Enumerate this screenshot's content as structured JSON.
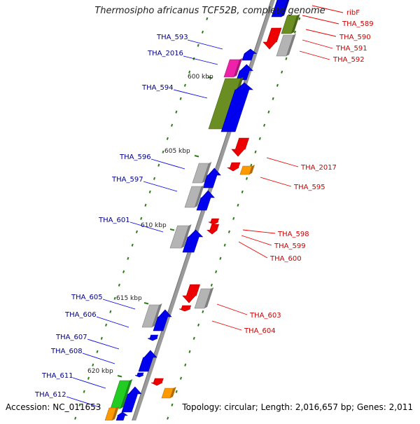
{
  "title": "Thermosipho africanus TCF52B, complete genome",
  "footer": {
    "accession": "Accession: NC_011653",
    "summary": "Topology: circular; Length: 2,016,657 bp; Genes: 2,011"
  },
  "colors": {
    "backbone": "#8a8a8a",
    "label_left": "#00008b",
    "label_right": "#cc0000",
    "tick": "#2e7d1a",
    "blue": "#0000ee",
    "grey": "#b4b4b4",
    "olive": "#6b8e23",
    "green": "#22cc22",
    "magenta": "#ee22aa",
    "red": "#ee0000",
    "orange": "#ff9900"
  },
  "kbp_ticks": [
    {
      "label": "600 kbp"
    },
    {
      "label": "605 kbp"
    },
    {
      "label": "610 kbp"
    },
    {
      "label": "615 kbp"
    },
    {
      "label": "620 kbp"
    }
  ],
  "left_genes": [
    {
      "label": "THA_593"
    },
    {
      "label": "THA_2016"
    },
    {
      "label": "THA_594"
    },
    {
      "label": "THA_596"
    },
    {
      "label": "THA_597"
    },
    {
      "label": "THA_601"
    },
    {
      "label": "THA_605"
    },
    {
      "label": "THA_606"
    },
    {
      "label": "THA_607"
    },
    {
      "label": "THA_608"
    },
    {
      "label": "THA_611"
    },
    {
      "label": "THA_612"
    }
  ],
  "right_genes": [
    {
      "label": "ribF"
    },
    {
      "label": "THA_589"
    },
    {
      "label": "THA_590"
    },
    {
      "label": "THA_591"
    },
    {
      "label": "THA_592"
    },
    {
      "label": "THA_2017"
    },
    {
      "label": "THA_595"
    },
    {
      "label": "THA_598"
    },
    {
      "label": "THA_599"
    },
    {
      "label": "THA_600"
    },
    {
      "label": "THA_603"
    },
    {
      "label": "THA_604"
    }
  ]
}
